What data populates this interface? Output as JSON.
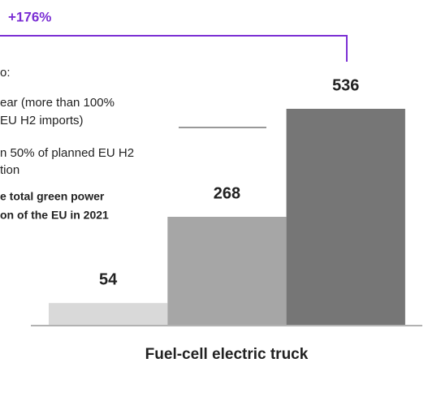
{
  "chart_data": {
    "type": "bar",
    "annotation_top": "+176%",
    "categories": [
      null,
      null,
      null
    ],
    "values": [
      54,
      268,
      536
    ],
    "colors": [
      "#d9d9d9",
      "#a6a6a6",
      "#767676"
    ],
    "xlabel": "Fuel-cell electric truck",
    "annotation_lines": [
      "o:",
      "ear (more than 100%",
      "EU H2 imports)",
      "n 50% of planned EU H2",
      "tion"
    ],
    "annotation_bold_lines": [
      "e total green power",
      "on of the EU in 2021"
    ],
    "accent_color": "#7b2fd4"
  }
}
